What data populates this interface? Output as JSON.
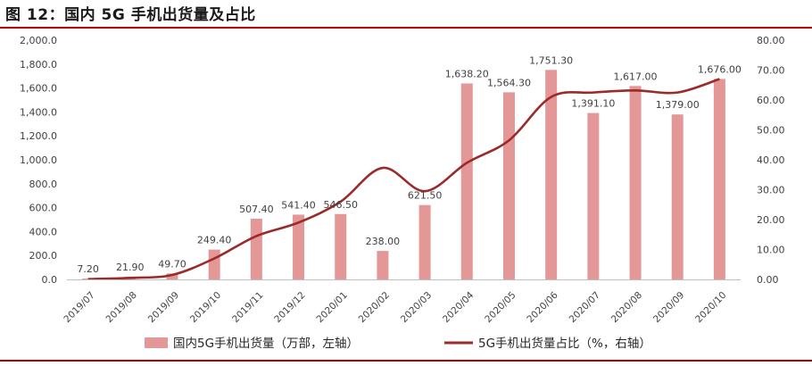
{
  "figure_title": "图 12：国内 5G 手机出货量及占比",
  "colors": {
    "bar": "#e39797",
    "line": "#9b2a2a",
    "rule": "#b80000",
    "grid": "#d9d9d9",
    "text": "#404040"
  },
  "chart_data": {
    "type": "bar",
    "categories": [
      "2019/07",
      "2019/08",
      "2019/09",
      "2019/10",
      "2019/11",
      "2019/12",
      "2020/01",
      "2020/02",
      "2020/03",
      "2020/04",
      "2020/05",
      "2020/06",
      "2020/07",
      "2020/08",
      "2020/09",
      "2020/10"
    ],
    "series": [
      {
        "name": "国内5G手机出货量（万部，左轴）",
        "type": "bar",
        "axis": "left",
        "values": [
          7.2,
          21.9,
          49.7,
          249.4,
          507.4,
          541.4,
          546.5,
          238.0,
          621.5,
          1638.2,
          1564.3,
          1751.3,
          1391.1,
          1617.0,
          1379.0,
          1676.0
        ],
        "labels": [
          "7.20",
          "21.90",
          "49.70",
          "249.40",
          "507.40",
          "541.40",
          "546.50",
          "238.00",
          "621.50",
          "1,638.20",
          "1,564.30",
          "1,751.30",
          "1,391.10",
          "1,617.00",
          "1,379.00",
          "1,676.00"
        ]
      },
      {
        "name": "5G手机出货量占比（%，右轴）",
        "type": "line",
        "axis": "right",
        "values": [
          0.1,
          0.5,
          1.5,
          7.0,
          14.5,
          19.0,
          26.0,
          37.3,
          29.5,
          39.0,
          46.5,
          61.0,
          62.5,
          63.2,
          62.5,
          67.0
        ]
      }
    ],
    "y_left": {
      "ylim": [
        0,
        2000
      ],
      "ticks": [
        "0.0",
        "200.0",
        "400.0",
        "600.0",
        "800.0",
        "1,000.0",
        "1,200.0",
        "1,400.0",
        "1,600.0",
        "1,800.0",
        "2,000.0"
      ]
    },
    "y_right": {
      "ylim": [
        0,
        80
      ],
      "ticks": [
        "0.00",
        "10.00",
        "20.00",
        "30.00",
        "40.00",
        "50.00",
        "60.00",
        "70.00",
        "80.00"
      ]
    },
    "grid": false,
    "legend_position": "bottom-center"
  }
}
